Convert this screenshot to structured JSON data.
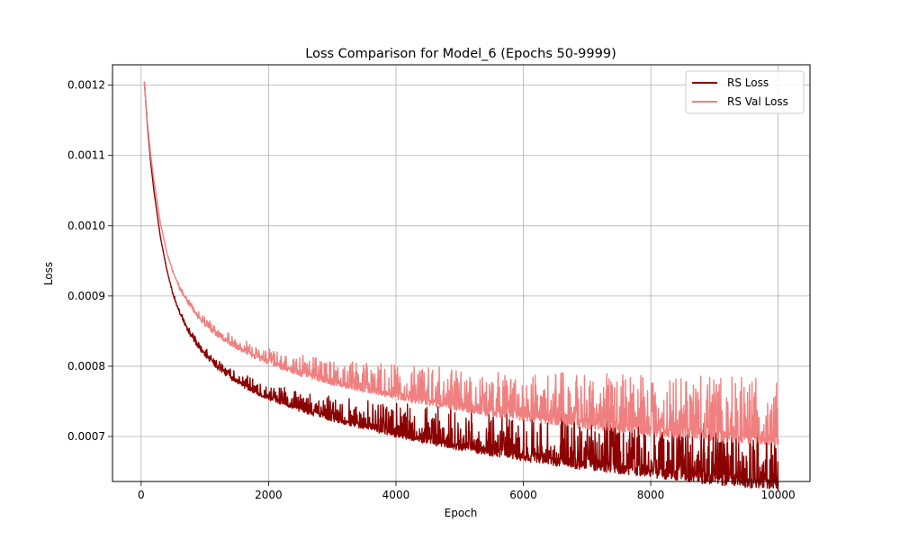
{
  "chart_data": {
    "type": "line",
    "title": "Loss Comparison for Model_6 (Epochs 50-9999)",
    "xlabel": "Epoch",
    "ylabel": "Loss",
    "xlim": [
      -450,
      10500
    ],
    "ylim": [
      0.000636,
      0.001229
    ],
    "xticks": [
      0,
      2000,
      4000,
      6000,
      8000,
      10000
    ],
    "xtick_labels": [
      "0",
      "2000",
      "4000",
      "6000",
      "8000",
      "10000"
    ],
    "yticks": [
      0.0007,
      0.0008,
      0.0009,
      0.001,
      0.0011,
      0.0012
    ],
    "ytick_labels": [
      "0.0007",
      "0.0008",
      "0.0009",
      "0.0010",
      "0.0011",
      "0.0012"
    ],
    "grid": true,
    "legend_position": "top-right",
    "series": [
      {
        "name": "RS Loss",
        "color": "#8b0000",
        "x": [
          50,
          100,
          150,
          200,
          300,
          400,
          500,
          600,
          700,
          800,
          900,
          1000,
          1200,
          1400,
          1600,
          1800,
          2000,
          2500,
          3000,
          3500,
          4000,
          4500,
          5000,
          5500,
          6000,
          6500,
          7000,
          7500,
          8000,
          8500,
          9000,
          9500,
          10000
        ],
        "values": [
          0.001205,
          0.00114,
          0.00109,
          0.00105,
          0.000985,
          0.000938,
          0.000903,
          0.000878,
          0.000858,
          0.000842,
          0.000829,
          0.000818,
          0.0008,
          0.000786,
          0.000775,
          0.000765,
          0.000757,
          0.000741,
          0.000727,
          0.000716,
          0.000706,
          0.000697,
          0.000689,
          0.000682,
          0.000675,
          0.000669,
          0.000664,
          0.000659,
          0.000654,
          0.000649,
          0.000645,
          0.000641,
          0.000637
        ],
        "noise_low": [
          0,
          0,
          0,
          0,
          0,
          1e-06,
          2e-06,
          3e-06,
          4e-06,
          4e-06,
          5e-06,
          5e-06,
          5e-06,
          5e-06,
          5e-06,
          5e-06,
          5e-06,
          6e-06,
          6e-06,
          6e-06,
          7e-06,
          8e-06,
          9e-06,
          1e-05,
          1e-05,
          1.1e-05,
          1.2e-05,
          1.2e-05,
          1.3e-05,
          1.3e-05,
          1.4e-05,
          1.4e-05,
          1.4e-05
        ],
        "noise_high": [
          0,
          0,
          0,
          0,
          0,
          2e-06,
          3e-06,
          4e-06,
          5e-06,
          6e-06,
          8e-06,
          9e-06,
          1e-05,
          1.2e-05,
          1.4e-05,
          1.6e-05,
          1.8e-05,
          2.4e-05,
          3.2e-05,
          3.8e-05,
          4.3e-05,
          4.8e-05,
          5.3e-05,
          5.7e-05,
          6e-05,
          6.4e-05,
          6.8e-05,
          7.1e-05,
          7.4e-05,
          7.7e-05,
          8e-05,
          8.3e-05,
          8.5e-05
        ]
      },
      {
        "name": "RS Val Loss",
        "color": "#f08080",
        "x": [
          50,
          100,
          150,
          200,
          300,
          400,
          500,
          600,
          700,
          800,
          900,
          1000,
          1200,
          1400,
          1600,
          1800,
          2000,
          2500,
          3000,
          3500,
          4000,
          4500,
          5000,
          5500,
          6000,
          6500,
          7000,
          7500,
          8000,
          8500,
          9000,
          9500,
          10000
        ],
        "values": [
          0.001205,
          0.001145,
          0.0011,
          0.001065,
          0.001005,
          0.000963,
          0.000934,
          0.000912,
          0.000896,
          0.000883,
          0.000872,
          0.000862,
          0.000846,
          0.000834,
          0.000824,
          0.000815,
          0.000807,
          0.000792,
          0.000779,
          0.000769,
          0.00076,
          0.000752,
          0.000745,
          0.000738,
          0.000732,
          0.000727,
          0.000722,
          0.000718,
          0.000714,
          0.00071,
          0.000707,
          0.000704,
          0.000701
        ],
        "noise_low": [
          0,
          0,
          0,
          0,
          0,
          1e-06,
          2e-06,
          3e-06,
          4e-06,
          4e-06,
          5e-06,
          5e-06,
          5e-06,
          5e-06,
          5e-06,
          5e-06,
          5e-06,
          6e-06,
          6e-06,
          6e-06,
          7e-06,
          8e-06,
          9e-06,
          1e-05,
          1e-05,
          1.1e-05,
          1.2e-05,
          1.2e-05,
          1.3e-05,
          1.3e-05,
          1.4e-05,
          1.4e-05,
          1.4e-05
        ],
        "noise_high": [
          0,
          0,
          0,
          0,
          0,
          2e-06,
          3e-06,
          4e-06,
          5e-06,
          6e-06,
          8e-06,
          9e-06,
          1e-05,
          1.2e-05,
          1.4e-05,
          1.6e-05,
          1.8e-05,
          2.4e-05,
          3.2e-05,
          3.8e-05,
          4.3e-05,
          4.8e-05,
          5.3e-05,
          5.7e-05,
          6e-05,
          6.4e-05,
          6.8e-05,
          7.1e-05,
          7.4e-05,
          7.7e-05,
          8e-05,
          8.3e-05,
          8.5e-05
        ]
      }
    ]
  }
}
